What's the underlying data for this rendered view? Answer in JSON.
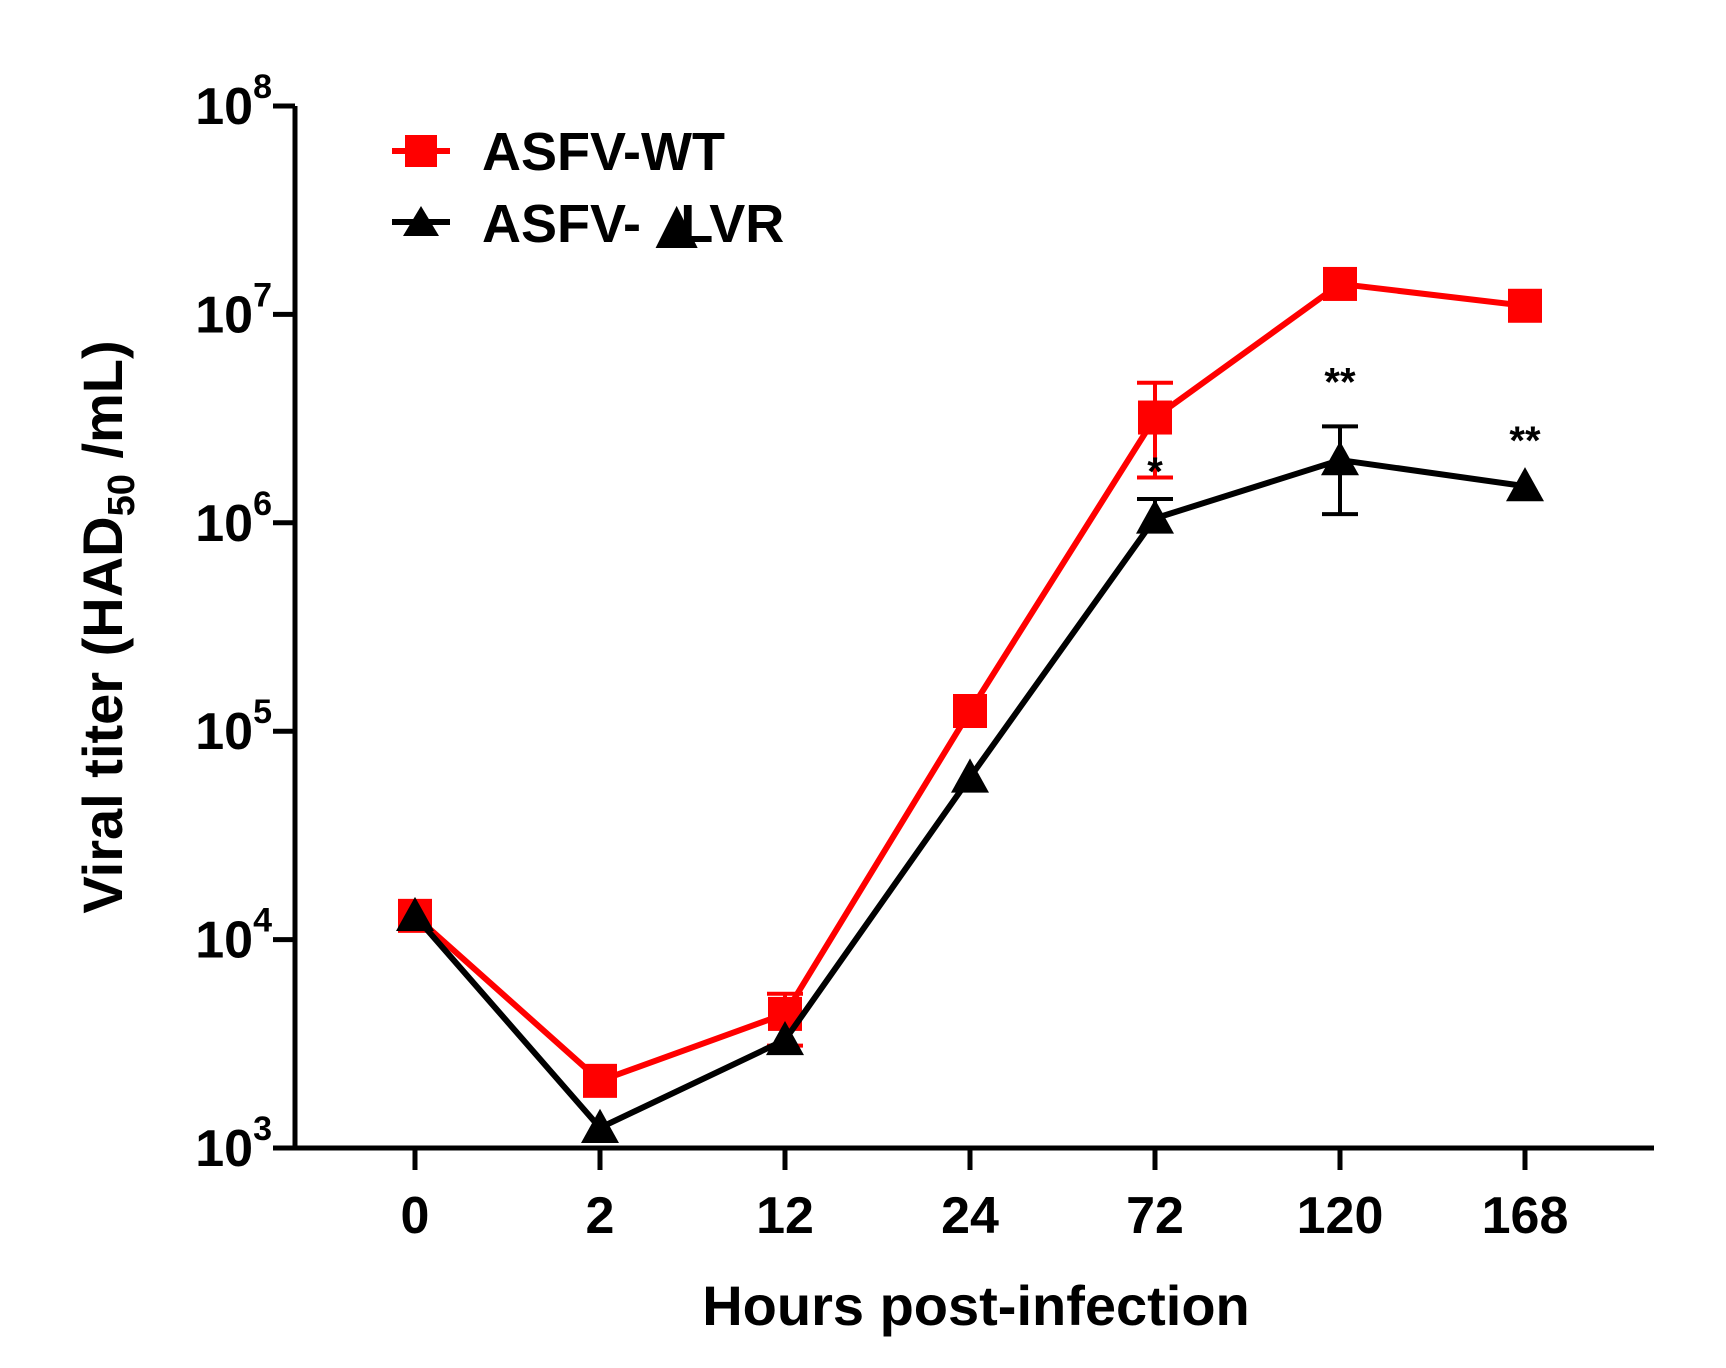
{
  "chart_data": {
    "type": "line",
    "title": "",
    "xlabel": "Hours post-infection",
    "ylabel": {
      "main": "Viral titer (HAD",
      "subscript": "50",
      "suffix": " /mL)"
    },
    "x_scale": "categorical",
    "y_scale": "log10",
    "categories": [
      "0",
      "2",
      "12",
      "24",
      "72",
      "120",
      "168"
    ],
    "ylim": [
      1000,
      100000000
    ],
    "y_ticks": [
      {
        "base": "10",
        "exp": "3",
        "value": 1000
      },
      {
        "base": "10",
        "exp": "4",
        "value": 10000
      },
      {
        "base": "10",
        "exp": "5",
        "value": 100000
      },
      {
        "base": "10",
        "exp": "6",
        "value": 1000000
      },
      {
        "base": "10",
        "exp": "7",
        "value": 10000000
      },
      {
        "base": "10",
        "exp": "8",
        "value": 100000000
      }
    ],
    "legend_position": "top-left",
    "series": [
      {
        "name": "ASFV-WT",
        "color": "#ff0000",
        "marker": "square",
        "values": [
          13000,
          2100,
          4400,
          125000,
          3200000,
          14000000,
          11000000
        ],
        "error_upper": [
          null,
          null,
          5500,
          null,
          4700000,
          null,
          null
        ],
        "error_lower": [
          null,
          null,
          3100,
          null,
          1650000,
          null,
          null
        ]
      },
      {
        "name": "ASFV-",
        "name_glyph": "▲",
        "name_suffix": "LVR",
        "color": "#000000",
        "marker": "triangle",
        "values": [
          13000,
          1250,
          3300,
          60000,
          1050000,
          2000000,
          1500000
        ],
        "error_upper": [
          null,
          null,
          null,
          null,
          1300000,
          2900000,
          null
        ],
        "error_lower": [
          null,
          null,
          null,
          null,
          null,
          1100000,
          null
        ]
      }
    ],
    "annotations": [
      {
        "category": "72",
        "text": "*",
        "value": 1450000
      },
      {
        "category": "120",
        "text": "**",
        "value": 3900000
      },
      {
        "category": "168",
        "text": "**",
        "value": 2050000
      }
    ]
  }
}
